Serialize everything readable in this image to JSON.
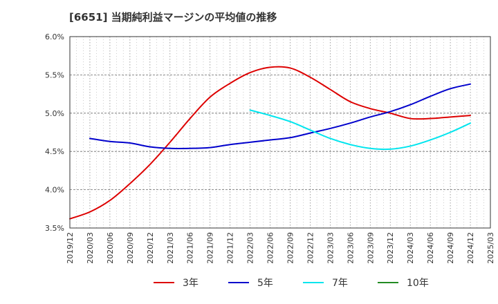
{
  "chart_data": {
    "type": "line",
    "title": "[6651]  当期純利益マージンの平均値の推移",
    "xlabel": "",
    "ylabel": "",
    "x_ticks": [
      "2019/12",
      "2020/03",
      "2020/06",
      "2020/09",
      "2020/12",
      "2021/03",
      "2021/06",
      "2021/09",
      "2021/12",
      "2022/03",
      "2022/06",
      "2022/09",
      "2022/12",
      "2023/03",
      "2023/06",
      "2023/09",
      "2023/12",
      "2024/03",
      "2024/06",
      "2024/09",
      "2024/12",
      "2025/03"
    ],
    "y_ticks": [
      "3.5%",
      "4.0%",
      "4.5%",
      "5.0%",
      "5.5%",
      "6.0%"
    ],
    "ylim": [
      3.5,
      6.0
    ],
    "grid": "dotted",
    "legend_position": "bottom",
    "series": [
      {
        "name": "3年",
        "color": "#dd0000",
        "points": [
          [
            "2019/12",
            3.62
          ],
          [
            "2020/03",
            3.71
          ],
          [
            "2020/06",
            3.86
          ],
          [
            "2020/09",
            4.08
          ],
          [
            "2020/12",
            4.33
          ],
          [
            "2021/03",
            4.62
          ],
          [
            "2021/06",
            4.93
          ],
          [
            "2021/09",
            5.21
          ],
          [
            "2021/12",
            5.39
          ],
          [
            "2022/03",
            5.53
          ],
          [
            "2022/06",
            5.6
          ],
          [
            "2022/09",
            5.59
          ],
          [
            "2022/12",
            5.47
          ],
          [
            "2023/03",
            5.31
          ],
          [
            "2023/06",
            5.15
          ],
          [
            "2023/09",
            5.06
          ],
          [
            "2023/12",
            5.0
          ],
          [
            "2024/03",
            4.93
          ],
          [
            "2024/06",
            4.93
          ],
          [
            "2024/09",
            4.95
          ],
          [
            "2024/12",
            4.97
          ]
        ]
      },
      {
        "name": "5年",
        "color": "#0000cc",
        "points": [
          [
            "2020/03",
            4.67
          ],
          [
            "2020/06",
            4.63
          ],
          [
            "2020/09",
            4.61
          ],
          [
            "2020/12",
            4.56
          ],
          [
            "2021/03",
            4.54
          ],
          [
            "2021/06",
            4.54
          ],
          [
            "2021/09",
            4.55
          ],
          [
            "2021/12",
            4.59
          ],
          [
            "2022/03",
            4.62
          ],
          [
            "2022/06",
            4.65
          ],
          [
            "2022/09",
            4.68
          ],
          [
            "2022/12",
            4.74
          ],
          [
            "2023/03",
            4.8
          ],
          [
            "2023/06",
            4.87
          ],
          [
            "2023/09",
            4.95
          ],
          [
            "2023/12",
            5.02
          ],
          [
            "2024/03",
            5.11
          ],
          [
            "2024/06",
            5.22
          ],
          [
            "2024/09",
            5.32
          ],
          [
            "2024/12",
            5.38
          ]
        ]
      },
      {
        "name": "7年",
        "color": "#00e5ee",
        "points": [
          [
            "2022/03",
            5.04
          ],
          [
            "2022/06",
            4.97
          ],
          [
            "2022/09",
            4.89
          ],
          [
            "2022/12",
            4.78
          ],
          [
            "2023/03",
            4.67
          ],
          [
            "2023/06",
            4.59
          ],
          [
            "2023/09",
            4.54
          ],
          [
            "2023/12",
            4.53
          ],
          [
            "2024/03",
            4.57
          ],
          [
            "2024/06",
            4.65
          ],
          [
            "2024/09",
            4.75
          ],
          [
            "2024/12",
            4.87
          ]
        ]
      },
      {
        "name": "10年",
        "color": "#228b22",
        "points": []
      }
    ]
  }
}
